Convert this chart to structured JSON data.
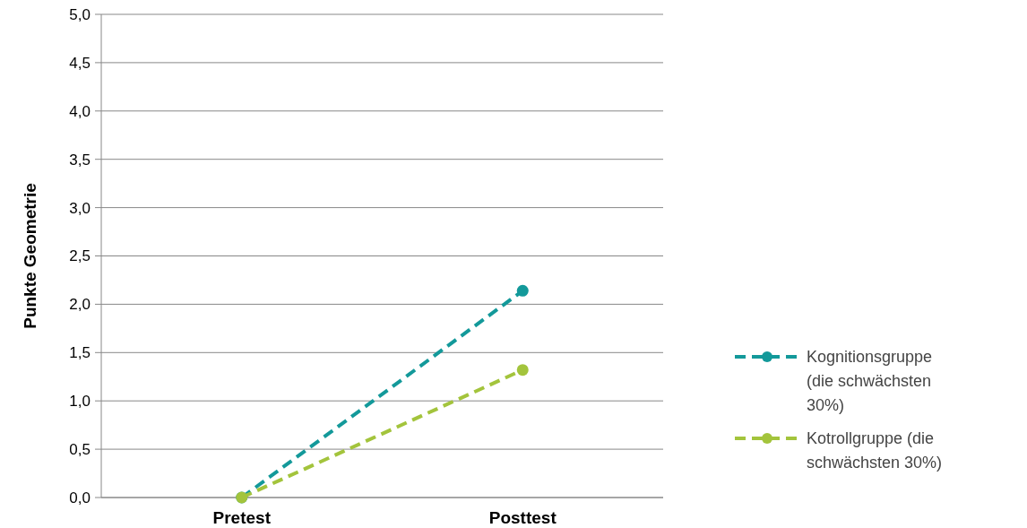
{
  "chart_data": {
    "type": "line",
    "ylabel": "Punkte Geometrie",
    "categories": [
      "Pretest",
      "Posttest"
    ],
    "series": [
      {
        "name": "Kognitionsgruppe (die schwächsten 30%)",
        "color": "#13999a",
        "values": [
          0,
          2.14
        ]
      },
      {
        "name": "Kotrollgruppe (die schwächsten 30%)",
        "color": "#a3c43c",
        "values": [
          0,
          1.32
        ]
      }
    ],
    "ylim": [
      0,
      5
    ],
    "yticks": [
      {
        "value": 0,
        "label": "0,0"
      },
      {
        "value": 0.5,
        "label": "0,5"
      },
      {
        "value": 1,
        "label": "1,0"
      },
      {
        "value": 1.5,
        "label": "1,5"
      },
      {
        "value": 2,
        "label": "2,0"
      },
      {
        "value": 2.5,
        "label": "2,5"
      },
      {
        "value": 3,
        "label": "3,0"
      },
      {
        "value": 3.5,
        "label": "3,5"
      },
      {
        "value": 4,
        "label": "4,0"
      },
      {
        "value": 4.5,
        "label": "4,5"
      },
      {
        "value": 5,
        "label": "5,0"
      }
    ],
    "grid": "y",
    "legend": "right",
    "marker": "circle",
    "line_style": "dashed"
  }
}
